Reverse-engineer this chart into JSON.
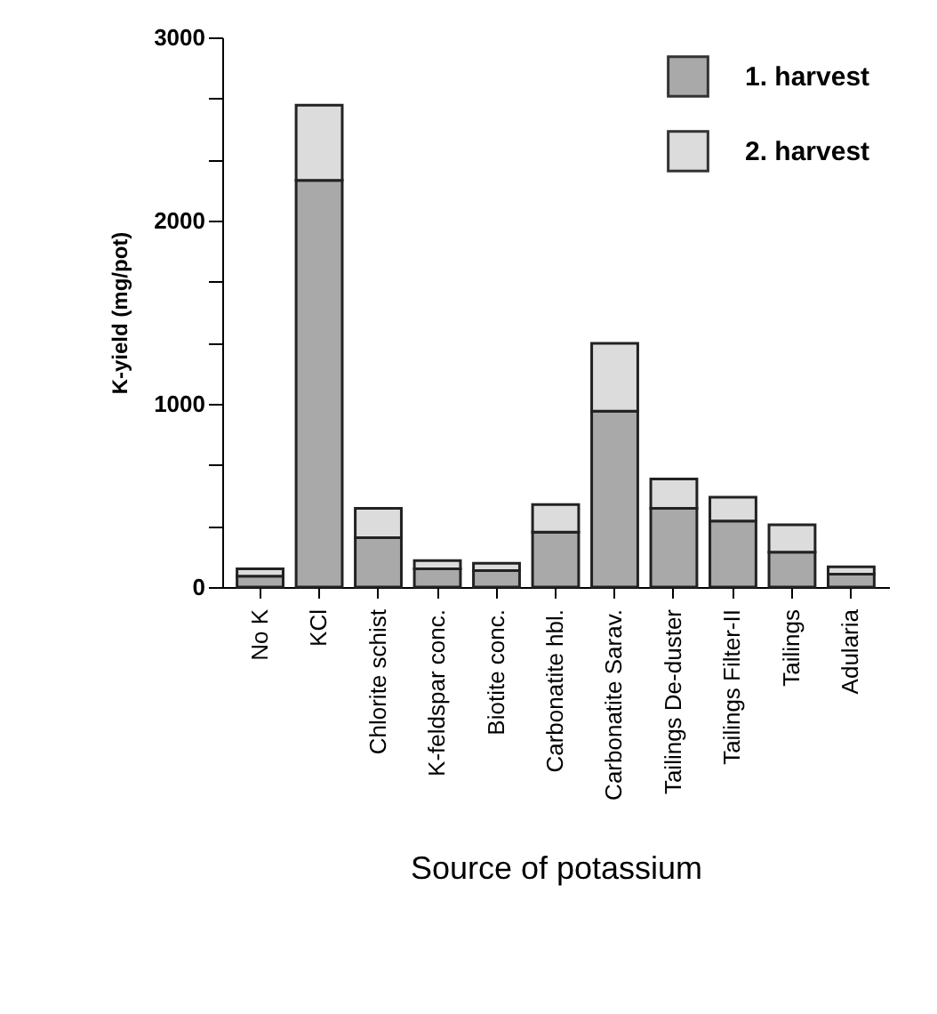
{
  "chart_data": {
    "type": "bar",
    "stacked": true,
    "xlabel": "Source of potassium",
    "ylabel": "K-yield (mg/pot)",
    "categories": [
      "No K",
      "KCl",
      "Chlorite schist",
      "K-feldspar conc.",
      "Biotite conc.",
      "Carbonatite hbl.",
      "Carbonatite Sarav.",
      "Tailings De-duster",
      "Tailings Filter-II",
      "Tailings",
      "Adularia"
    ],
    "series": [
      {
        "name": "1. harvest",
        "color": "#a9a9a9",
        "values": [
          60,
          2220,
          270,
          100,
          90,
          300,
          960,
          430,
          360,
          190,
          70
        ]
      },
      {
        "name": "2. harvest",
        "color": "#dcdcdc",
        "values": [
          40,
          410,
          160,
          45,
          40,
          150,
          370,
          160,
          130,
          150,
          40
        ]
      }
    ],
    "ylim": [
      0,
      3000
    ],
    "yticks": [
      0,
      {
        "value": 333.3,
        "label": null
      },
      {
        "value": 666.7,
        "label": null
      },
      1000,
      {
        "value": 1333.3,
        "label": null
      },
      {
        "value": 1666.7,
        "label": null
      },
      2000,
      {
        "value": 2333.3,
        "label": null
      },
      {
        "value": 2666.7,
        "label": null
      },
      3000
    ],
    "grid": false,
    "legend": "top right"
  }
}
